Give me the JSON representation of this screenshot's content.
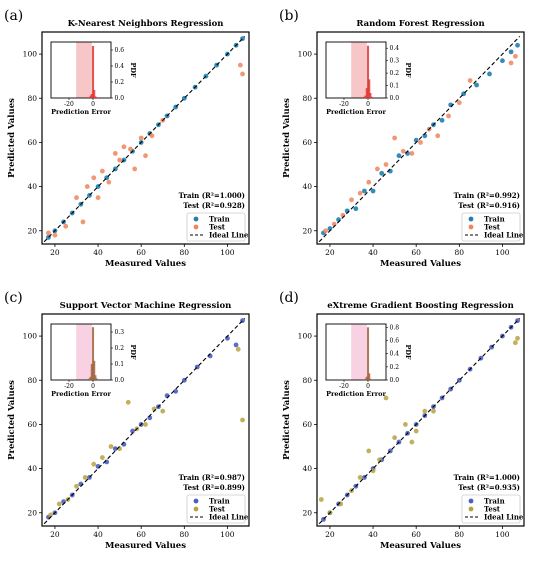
{
  "figure": {
    "panels": [
      {
        "letter": "(a)",
        "title": "K-Nearest Neighbors Regression",
        "train_label": "Train (R²=1.000)",
        "test_label": "Test (R²=0.928)",
        "train_color": "#1f7fb4",
        "test_color": "#f0855a",
        "hist_color": "#e03535",
        "band_color": "#f4b3b3",
        "hist_peak": 0.65,
        "hist_ymax": 0.7,
        "hist_yticks": [
          0.0,
          0.2,
          0.4,
          0.6
        ],
        "hist_bars": [
          0.01,
          0.03,
          0.05,
          0.65,
          0.1,
          0.02,
          0.01
        ]
      },
      {
        "letter": "(b)",
        "title": "Random Forest Regression",
        "train_label": "Train (R²=0.992)",
        "test_label": "Test (R²=0.916)",
        "train_color": "#1f7fb4",
        "test_color": "#f0855a",
        "hist_color": "#e03535",
        "band_color": "#f4b3b3",
        "hist_peak": 0.42,
        "hist_ymax": 0.45,
        "hist_yticks": [
          0.0,
          0.1,
          0.2,
          0.3,
          0.4
        ],
        "hist_bars": [
          0.01,
          0.02,
          0.08,
          0.42,
          0.15,
          0.04,
          0.01
        ]
      },
      {
        "letter": "(c)",
        "title": "Support Vector Machine Regression",
        "train_label": "Train (R²=0.987)",
        "test_label": "Test (R²=0.899)",
        "train_color": "#4a5ec0",
        "test_color": "#b8a240",
        "hist_color": "#a0623c",
        "band_color": "#f5c2d8",
        "hist_peak": 0.33,
        "hist_ymax": 0.35,
        "hist_yticks": [
          0.0,
          0.1,
          0.2,
          0.3
        ],
        "hist_bars": [
          0.01,
          0.02,
          0.1,
          0.33,
          0.12,
          0.03,
          0.01
        ]
      },
      {
        "letter": "(d)",
        "title": "eXtreme Gradient Boosting Regression",
        "train_label": "Train (R²=1.000)",
        "test_label": "Test (R²=0.935)",
        "train_color": "#4a5ec0",
        "test_color": "#b8a240",
        "hist_color": "#a0623c",
        "band_color": "#f5c2d8",
        "hist_peak": 0.8,
        "hist_ymax": 0.85,
        "hist_yticks": [
          0.0,
          0.2,
          0.4,
          0.6,
          0.8
        ],
        "hist_bars": [
          0.01,
          0.02,
          0.05,
          0.8,
          0.1,
          0.02,
          0.01
        ]
      }
    ],
    "legend": {
      "train": "Train",
      "test": "Test",
      "ideal": "Ideal Line"
    },
    "xlabel": "Measured  Values",
    "ylabel": "Predicted  Values",
    "inset_xlabel": "Prediction Error",
    "inset_ylabel": "PDF"
  },
  "chart_data": [
    {
      "type": "scatter",
      "title": "K-Nearest Neighbors Regression",
      "xlabel": "Measured  Values",
      "ylabel": "Predicted  Values",
      "xlim": [
        14,
        110
      ],
      "ylim": [
        14,
        110
      ],
      "xticks": [
        20,
        40,
        60,
        80,
        100
      ],
      "yticks": [
        20,
        40,
        60,
        80,
        100
      ],
      "series": [
        {
          "name": "Train",
          "x": [
            17,
            20,
            24,
            28,
            32,
            36,
            40,
            44,
            48,
            52,
            56,
            60,
            64,
            68,
            72,
            76,
            80,
            85,
            90,
            95,
            100,
            104,
            107
          ],
          "y": [
            17,
            20,
            24,
            28,
            32,
            36,
            40,
            44,
            48,
            52,
            56,
            60,
            64,
            68,
            72,
            76,
            80,
            85,
            90,
            95,
            100,
            104,
            107
          ]
        },
        {
          "name": "Test",
          "x": [
            17,
            20,
            25,
            30,
            33,
            35,
            38,
            40,
            42,
            45,
            48,
            50,
            52,
            55,
            57,
            60,
            62,
            65,
            70,
            106,
            107
          ],
          "y": [
            19,
            18,
            22,
            35,
            24,
            40,
            44,
            35,
            47,
            42,
            55,
            52,
            58,
            57,
            48,
            62,
            54,
            63,
            70,
            95,
            91
          ]
        },
        {
          "name": "Ideal Line",
          "x": [
            15,
            108
          ],
          "y": [
            15,
            108
          ]
        }
      ],
      "inset": {
        "xlabel": "Prediction Error",
        "ylabel": "PDF",
        "xticks": [
          -20,
          0
        ],
        "yticks": [
          0.0,
          0.2,
          0.4,
          0.6
        ]
      }
    },
    {
      "type": "scatter",
      "title": "Random Forest Regression",
      "xlabel": "Measured  Values",
      "ylabel": "Predicted  Values",
      "xlim": [
        14,
        110
      ],
      "ylim": [
        14,
        110
      ],
      "xticks": [
        20,
        40,
        60,
        80,
        100
      ],
      "yticks": [
        20,
        40,
        60,
        80,
        100
      ],
      "series": [
        {
          "name": "Train",
          "x": [
            17,
            20,
            24,
            28,
            32,
            36,
            40,
            44,
            48,
            52,
            56,
            60,
            64,
            68,
            72,
            76,
            82,
            88,
            94,
            100,
            104,
            107
          ],
          "y": [
            19,
            21,
            25,
            29,
            30,
            38,
            38,
            46,
            47,
            54,
            55,
            61,
            63,
            68,
            70,
            77,
            82,
            86,
            91,
            97,
            101,
            104
          ]
        },
        {
          "name": "Test",
          "x": [
            18,
            22,
            26,
            30,
            34,
            38,
            42,
            46,
            50,
            54,
            58,
            62,
            66,
            70,
            75,
            80,
            85,
            104,
            106
          ],
          "y": [
            20,
            23,
            27,
            34,
            37,
            42,
            48,
            50,
            62,
            56,
            55,
            60,
            66,
            63,
            72,
            78,
            88,
            96,
            99
          ]
        },
        {
          "name": "Ideal Line",
          "x": [
            15,
            108
          ],
          "y": [
            15,
            108
          ]
        }
      ],
      "inset": {
        "xlabel": "Prediction Error",
        "ylabel": "PDF",
        "xticks": [
          -20,
          0
        ],
        "yticks": [
          0.0,
          0.1,
          0.2,
          0.3,
          0.4
        ]
      }
    },
    {
      "type": "scatter",
      "title": "Support Vector Machine Regression",
      "xlabel": "Measured  Values",
      "ylabel": "Predicted  Values",
      "xlim": [
        14,
        110
      ],
      "ylim": [
        14,
        110
      ],
      "xticks": [
        20,
        40,
        60,
        80,
        100
      ],
      "yticks": [
        20,
        40,
        60,
        80,
        100
      ],
      "series": [
        {
          "name": "Train",
          "x": [
            17,
            20,
            24,
            28,
            32,
            36,
            40,
            44,
            48,
            52,
            56,
            60,
            64,
            68,
            72,
            76,
            80,
            86,
            92,
            100,
            104,
            107
          ],
          "y": [
            18,
            20,
            25,
            28,
            33,
            36,
            41,
            43,
            49,
            51,
            57,
            60,
            63,
            68,
            73,
            75,
            80,
            86,
            91,
            99,
            96,
            107
          ]
        },
        {
          "name": "Test",
          "x": [
            18,
            22,
            26,
            30,
            34,
            38,
            42,
            46,
            50,
            54,
            58,
            62,
            66,
            70,
            105,
            107
          ],
          "y": [
            19,
            24,
            26,
            32,
            36,
            42,
            45,
            50,
            49,
            70,
            58,
            60,
            67,
            66,
            94,
            62
          ]
        },
        {
          "name": "Ideal Line",
          "x": [
            15,
            108
          ],
          "y": [
            15,
            108
          ]
        }
      ],
      "inset": {
        "xlabel": "Prediction Error",
        "ylabel": "PDF",
        "xticks": [
          -20,
          0
        ],
        "yticks": [
          0.0,
          0.1,
          0.2,
          0.3
        ]
      }
    },
    {
      "type": "scatter",
      "title": "eXtreme Gradient Boosting Regression",
      "xlabel": "Measured  Values",
      "ylabel": "Predicted  Values",
      "xlim": [
        14,
        110
      ],
      "ylim": [
        14,
        110
      ],
      "xticks": [
        20,
        40,
        60,
        80,
        100
      ],
      "yticks": [
        20,
        40,
        60,
        80,
        100
      ],
      "series": [
        {
          "name": "Train",
          "x": [
            17,
            20,
            24,
            28,
            32,
            36,
            40,
            44,
            48,
            52,
            56,
            60,
            64,
            68,
            72,
            76,
            80,
            85,
            90,
            95,
            100,
            104,
            107
          ],
          "y": [
            17,
            20,
            24,
            28,
            32,
            36,
            40,
            44,
            48,
            52,
            56,
            60,
            64,
            68,
            72,
            76,
            80,
            85,
            90,
            95,
            100,
            104,
            107
          ]
        },
        {
          "name": "Test",
          "x": [
            16,
            20,
            25,
            30,
            34,
            38,
            40,
            43,
            46,
            50,
            55,
            58,
            60,
            64,
            68,
            106,
            107
          ],
          "y": [
            26,
            20,
            24,
            30,
            36,
            48,
            39,
            44,
            72,
            54,
            60,
            52,
            57,
            66,
            66,
            97,
            99
          ]
        },
        {
          "name": "Ideal Line",
          "x": [
            15,
            108
          ],
          "y": [
            15,
            108
          ]
        }
      ],
      "inset": {
        "xlabel": "Prediction Error",
        "ylabel": "PDF",
        "xticks": [
          -20,
          0
        ],
        "yticks": [
          0.0,
          0.2,
          0.4,
          0.6,
          0.8
        ]
      }
    }
  ]
}
